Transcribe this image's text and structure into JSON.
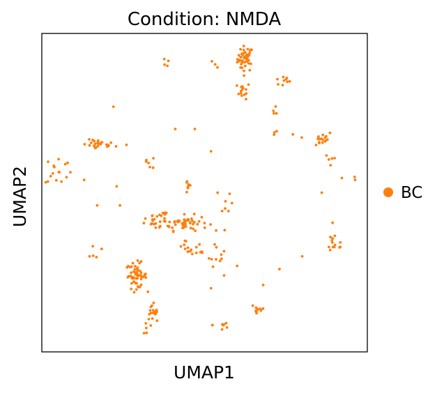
{
  "chart_data": {
    "type": "scatter",
    "title": "Condition: NMDA",
    "xlabel": "UMAP1",
    "ylabel": "UMAP2",
    "xlim": [
      0,
      100
    ],
    "ylim": [
      0,
      100
    ],
    "grid": false,
    "ticks": false,
    "legend": {
      "placement": "right",
      "entries": [
        {
          "label": "BC",
          "color": "#ff7f0e"
        }
      ]
    },
    "series": [
      {
        "name": "BC",
        "color": "#ff7f0e",
        "clusters": [
          {
            "cx": 62.5,
            "cy": 92.0,
            "sx": 1.2,
            "sy": 2.0,
            "n": 45
          },
          {
            "cx": 62.0,
            "cy": 82.0,
            "sx": 1.0,
            "sy": 1.3,
            "n": 14
          },
          {
            "cx": 74.0,
            "cy": 85.0,
            "sx": 1.5,
            "sy": 0.8,
            "n": 9
          },
          {
            "cx": 38.0,
            "cy": 91.0,
            "sx": 0.5,
            "sy": 1.2,
            "n": 4
          },
          {
            "cx": 53.0,
            "cy": 90.0,
            "sx": 1.2,
            "sy": 0.5,
            "n": 3
          },
          {
            "cx": 17.5,
            "cy": 65.0,
            "sx": 2.5,
            "sy": 0.8,
            "n": 26
          },
          {
            "cx": 5.0,
            "cy": 57.0,
            "sx": 2.0,
            "sy": 2.5,
            "n": 16
          },
          {
            "cx": 84.0,
            "cy": 67.0,
            "sx": 3.0,
            "sy": 1.2,
            "n": 18
          },
          {
            "cx": 88.0,
            "cy": 60.0,
            "sx": 1.5,
            "sy": 1.5,
            "n": 4
          },
          {
            "cx": 72.0,
            "cy": 76.0,
            "sx": 0.8,
            "sy": 1.0,
            "n": 4
          },
          {
            "cx": 71.5,
            "cy": 69.0,
            "sx": 0.6,
            "sy": 0.7,
            "n": 3
          },
          {
            "cx": 45.0,
            "cy": 52.0,
            "sx": 0.5,
            "sy": 1.5,
            "n": 8
          },
          {
            "cx": 44.0,
            "cy": 40.5,
            "sx": 3.5,
            "sy": 1.2,
            "n": 55
          },
          {
            "cx": 34.0,
            "cy": 41.5,
            "sx": 1.3,
            "sy": 1.5,
            "n": 16
          },
          {
            "cx": 38.0,
            "cy": 43.0,
            "sx": 1.0,
            "sy": 0.8,
            "n": 5
          },
          {
            "cx": 48.0,
            "cy": 32.0,
            "sx": 2.5,
            "sy": 1.0,
            "n": 10
          },
          {
            "cx": 53.5,
            "cy": 31.0,
            "sx": 1.5,
            "sy": 2.0,
            "n": 10
          },
          {
            "cx": 44.5,
            "cy": 33.5,
            "sx": 1.2,
            "sy": 0.8,
            "n": 6
          },
          {
            "cx": 57.0,
            "cy": 45.0,
            "sx": 0.8,
            "sy": 2.0,
            "n": 7
          },
          {
            "cx": 29.0,
            "cy": 24.0,
            "sx": 1.6,
            "sy": 2.0,
            "n": 55
          },
          {
            "cx": 34.0,
            "cy": 10.5,
            "sx": 1.3,
            "sy": 2.5,
            "n": 22
          },
          {
            "cx": 66.5,
            "cy": 13.5,
            "sx": 1.2,
            "sy": 1.2,
            "n": 12
          },
          {
            "cx": 55.5,
            "cy": 8.5,
            "sx": 1.5,
            "sy": 1.3,
            "n": 8
          },
          {
            "cx": 90.0,
            "cy": 34.0,
            "sx": 1.5,
            "sy": 2.0,
            "n": 14
          },
          {
            "cx": 33.0,
            "cy": 59.5,
            "sx": 1.3,
            "sy": 1.0,
            "n": 6
          },
          {
            "cx": 16.0,
            "cy": 30.0,
            "sx": 1.5,
            "sy": 1.5,
            "n": 5
          },
          {
            "cx": 92.0,
            "cy": 56.0,
            "sx": 4.0,
            "sy": 3.0,
            "n": 4
          }
        ],
        "points": [
          [
            22,
            77
          ],
          [
            41,
            70
          ],
          [
            47,
            70
          ],
          [
            26,
            65
          ],
          [
            52,
            63
          ],
          [
            17,
            46
          ],
          [
            24,
            46
          ],
          [
            13,
            54
          ],
          [
            54,
            50
          ],
          [
            86,
            50
          ],
          [
            80,
            30
          ],
          [
            68,
            21
          ],
          [
            56,
            24
          ],
          [
            60,
            27
          ],
          [
            52,
            20
          ],
          [
            73,
            26
          ],
          [
            23,
            52
          ],
          [
            30,
            24
          ],
          [
            35,
            39
          ]
        ]
      }
    ]
  }
}
